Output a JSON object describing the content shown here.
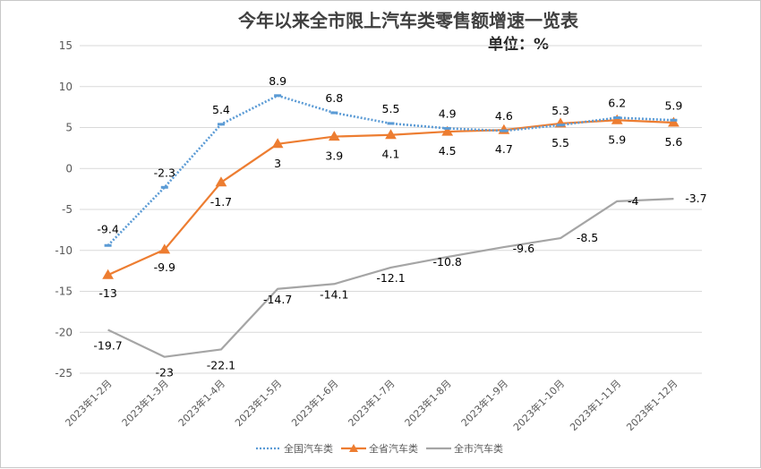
{
  "chart_data": {
    "type": "line",
    "title": "今年以来全市限上汽车类零售额增速一览表",
    "subtitle": "单位：%",
    "categories": [
      "2023年1-2月",
      "2023年1-3月",
      "2023年1-4月",
      "2023年1-5月",
      "2023年1-6月",
      "2023年1-7月",
      "2023年1-8月",
      "2023年1-9月",
      "2023年1-10月",
      "2023年1-11月",
      "2023年1-12月"
    ],
    "ylim": [
      -25,
      15
    ],
    "yticks": [
      15,
      10,
      5,
      0,
      -5,
      -10,
      -15,
      -20,
      -25
    ],
    "grid": true,
    "legend_position": "bottom",
    "series": [
      {
        "name": "全国汽车类",
        "color": "#5b9bd5",
        "style": "dotted",
        "marker": "dash",
        "values": [
          -9.4,
          -2.3,
          5.4,
          8.9,
          6.8,
          5.5,
          4.9,
          4.6,
          5.3,
          6.2,
          5.9
        ]
      },
      {
        "name": "全省汽车类",
        "color": "#ed7d31",
        "style": "solid",
        "marker": "triangle",
        "values": [
          -13,
          -9.9,
          -1.7,
          3,
          3.9,
          4.1,
          4.5,
          4.7,
          5.5,
          5.9,
          5.6
        ]
      },
      {
        "name": "全市汽车类",
        "color": "#a5a5a5",
        "style": "solid",
        "marker": "none",
        "values": [
          -19.7,
          -23,
          -22.1,
          -14.7,
          -14.1,
          -12.1,
          -10.8,
          -9.6,
          -8.5,
          -4,
          -3.7
        ]
      }
    ]
  }
}
